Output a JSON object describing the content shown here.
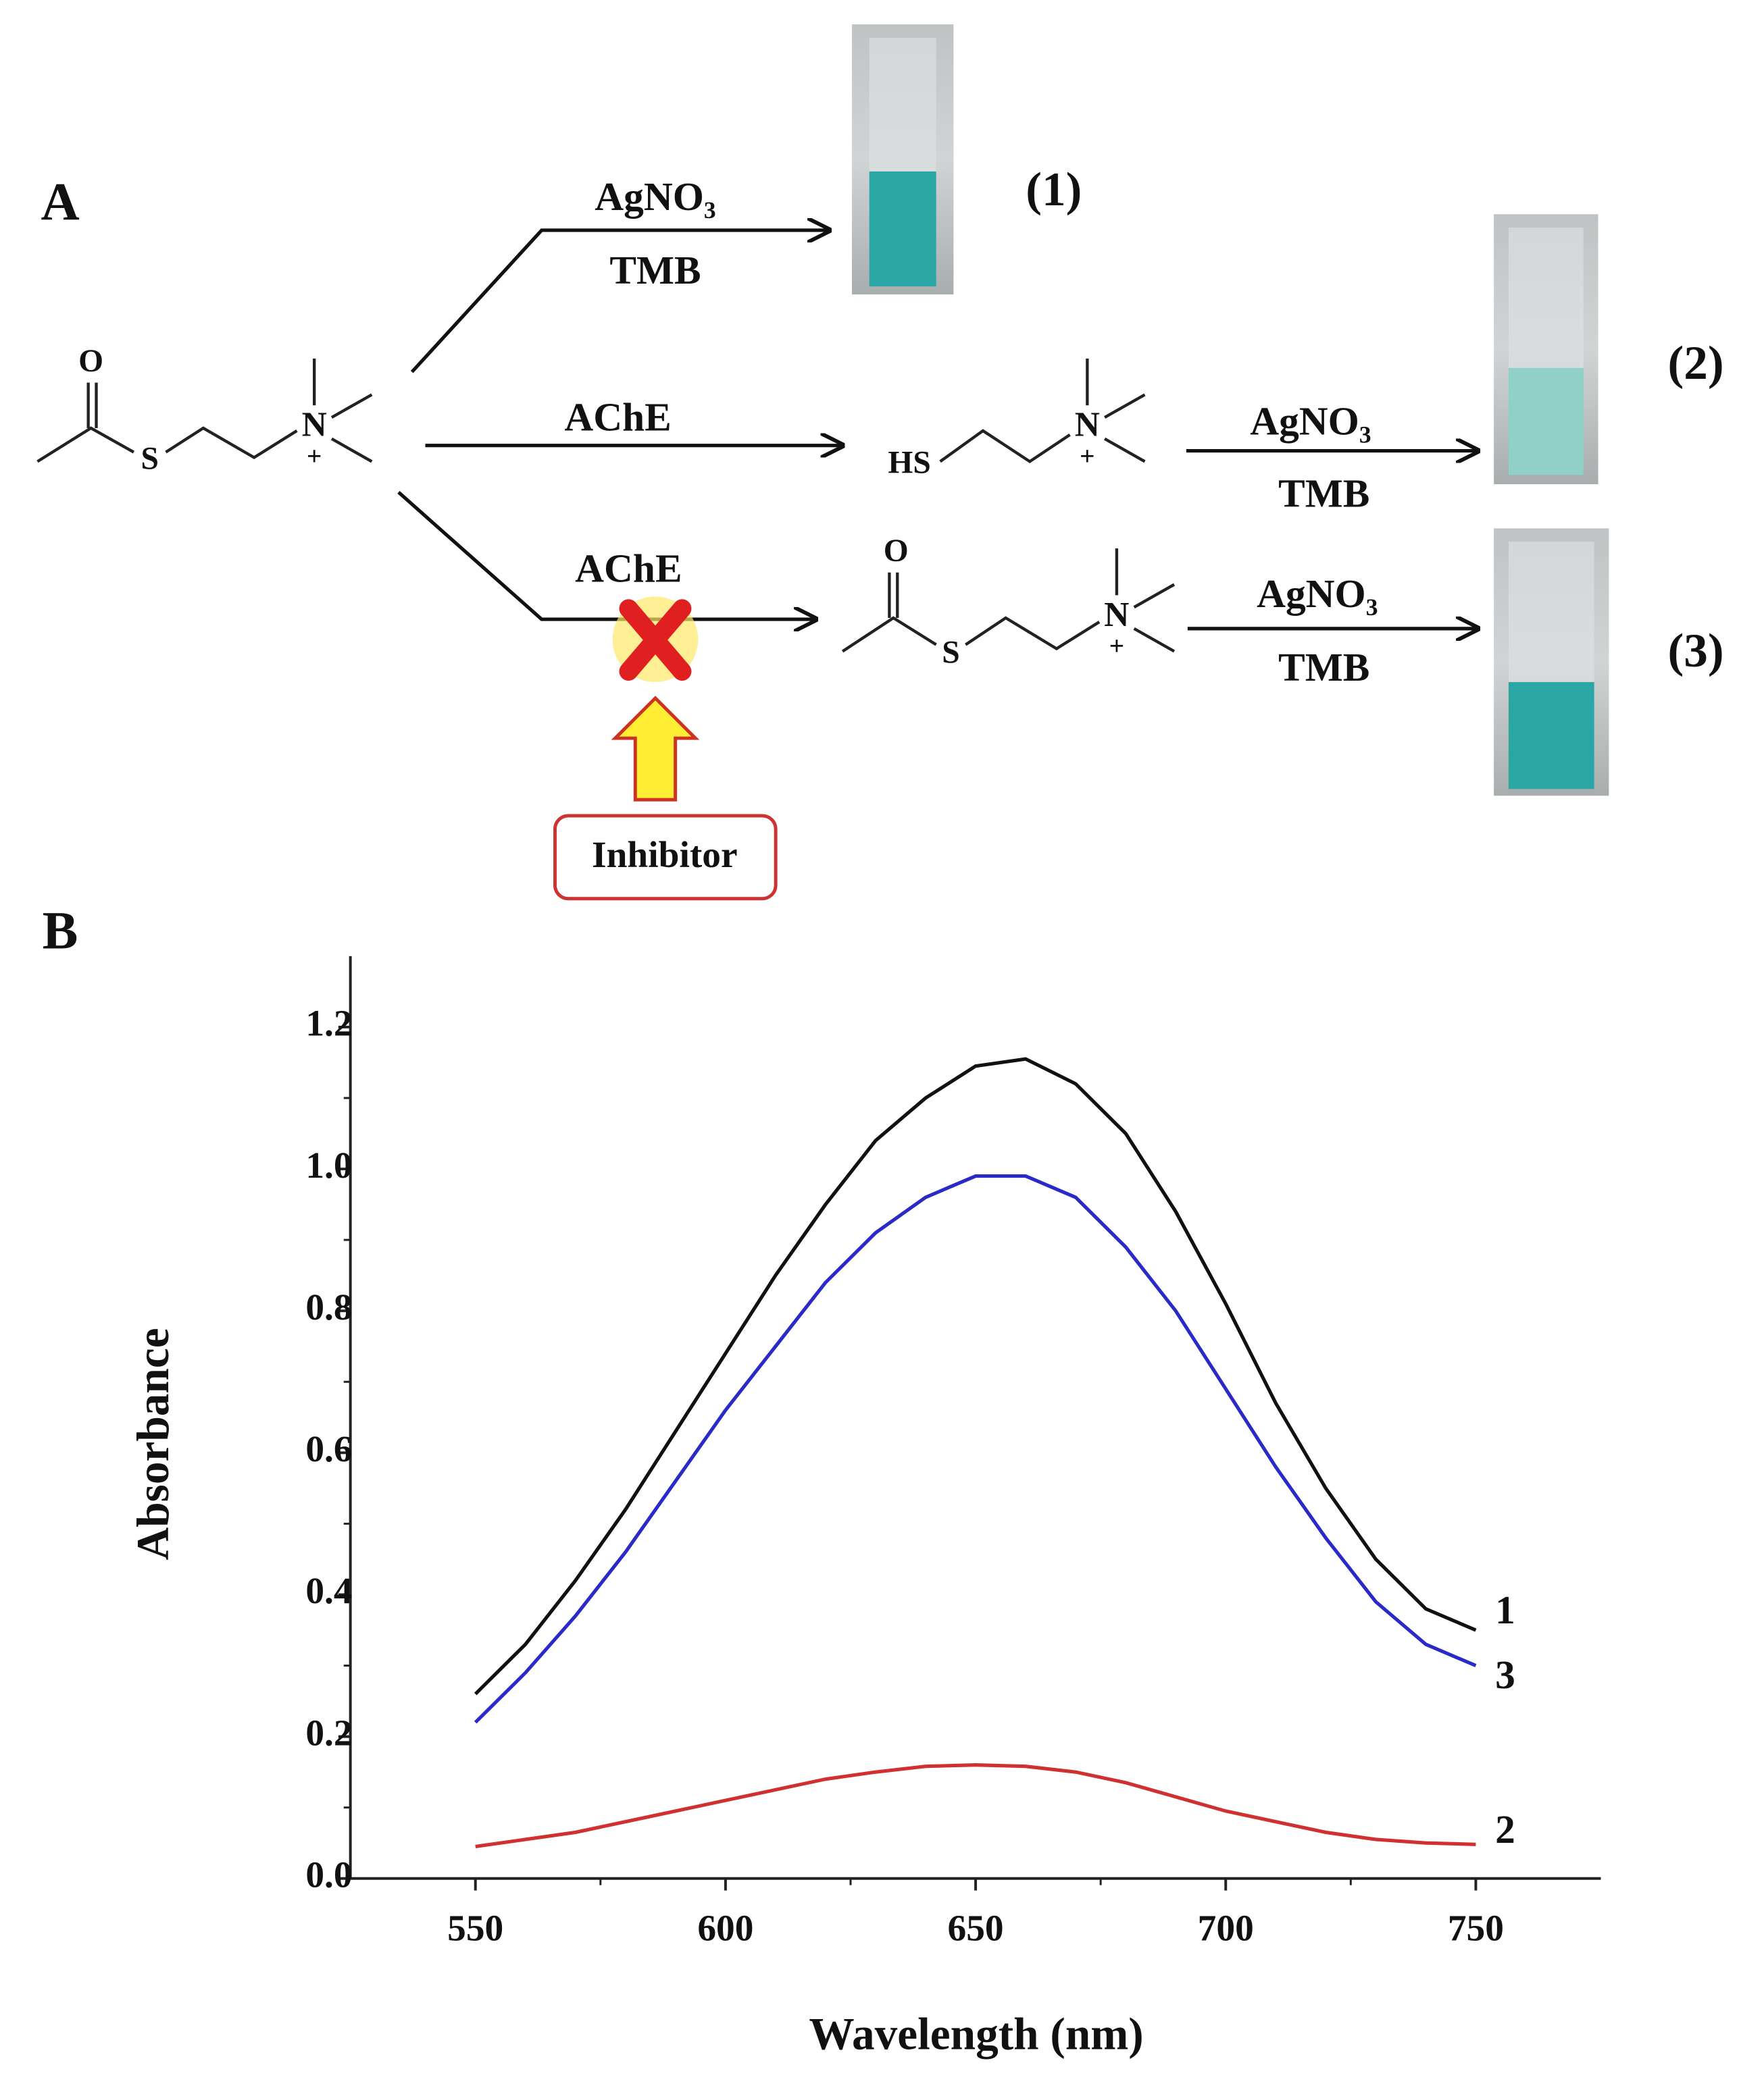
{
  "scheme": {
    "panel_a": "A",
    "panel_b": "B",
    "reagent": "AgNO₃",
    "reagent_2": "TMB",
    "enzyme": "AChE",
    "enzyme_2": "AChE",
    "inhibitor": "Inhibitor",
    "vial_1": "(1)",
    "vial_2": "(2)",
    "vial_3": "(3)",
    "atom_o": "O",
    "atom_s": "S",
    "atom_n": "N",
    "charge": "+",
    "thiol": "HS"
  },
  "chart_data": {
    "type": "line",
    "xlabel": "Wavelength (nm)",
    "ylabel": "Absorbance",
    "x": [
      550,
      560,
      570,
      580,
      590,
      600,
      610,
      620,
      630,
      640,
      650,
      660,
      670,
      680,
      690,
      700,
      710,
      720,
      730,
      740,
      750
    ],
    "series": [
      {
        "name": "1",
        "color": "#111111",
        "values": [
          0.26,
          0.33,
          0.42,
          0.52,
          0.63,
          0.74,
          0.85,
          0.95,
          1.04,
          1.1,
          1.145,
          1.155,
          1.12,
          1.05,
          0.94,
          0.81,
          0.67,
          0.55,
          0.45,
          0.38,
          0.35
        ]
      },
      {
        "name": "3",
        "color": "#2a2ac8",
        "values": [
          0.22,
          0.29,
          0.37,
          0.46,
          0.56,
          0.66,
          0.75,
          0.84,
          0.91,
          0.96,
          0.99,
          0.99,
          0.96,
          0.89,
          0.8,
          0.69,
          0.58,
          0.48,
          0.39,
          0.33,
          0.3
        ]
      },
      {
        "name": "2",
        "color": "#d03030",
        "values": [
          0.045,
          0.055,
          0.065,
          0.08,
          0.095,
          0.11,
          0.125,
          0.14,
          0.15,
          0.158,
          0.16,
          0.158,
          0.15,
          0.135,
          0.115,
          0.095,
          0.08,
          0.065,
          0.055,
          0.05,
          0.048
        ]
      }
    ],
    "xlim": [
      525,
      775
    ],
    "xticks": [
      550,
      600,
      650,
      700,
      750
    ],
    "ylim": [
      0,
      1.3
    ],
    "yticks": [
      {
        "value": 0,
        "label": "0.0"
      },
      0.2,
      0.4,
      0.6,
      0.8,
      {
        "value": 1,
        "label": "1.0"
      },
      1.2
    ]
  }
}
